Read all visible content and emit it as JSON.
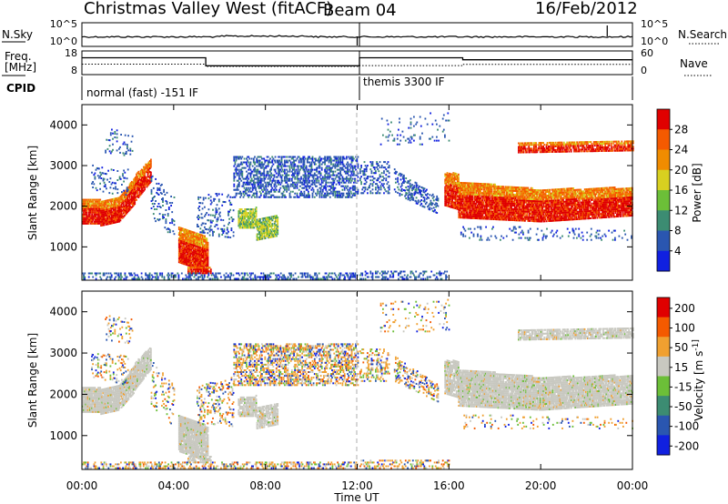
{
  "chart_data": {
    "type": "heatmap",
    "title": {
      "left": "Christmas Valley West (fitACF)",
      "center": "Beam 04",
      "right": "16/Feb/2012"
    },
    "xlabel": "Time UT",
    "x_ticks": [
      "00:00",
      "04:00",
      "08:00",
      "12:00",
      "16:00",
      "20:00",
      "00:00"
    ],
    "header_panels": {
      "sky_noise": {
        "left_label": "N.Sky",
        "left_ticks": [
          "10^5",
          "10^0"
        ],
        "right_label": "N.Search",
        "right_ticks": [
          "10^5",
          "10^0"
        ]
      },
      "frequency": {
        "left_label_1": "Freq.",
        "left_label_2": "[MHz]",
        "left_ticks": [
          "18",
          "8"
        ],
        "right_label": "Nave",
        "right_ticks": [
          "60",
          "0"
        ],
        "freq_solid": [
          [
            0,
            15.5
          ],
          [
            5.4,
            15.5
          ],
          [
            5.4,
            11.5
          ],
          [
            12.1,
            11.5
          ],
          [
            12.1,
            15.5
          ],
          [
            16.6,
            15.5
          ],
          [
            16.6,
            14.5
          ],
          [
            24,
            14.5
          ]
        ],
        "nave_dotted": [
          [
            0,
            12.3
          ],
          [
            5.4,
            12.3
          ],
          [
            5.4,
            11.2
          ],
          [
            12.1,
            11.2
          ],
          [
            12.1,
            11.6
          ],
          [
            16.6,
            11.6
          ],
          [
            16.6,
            12.2
          ],
          [
            24,
            12.2
          ]
        ]
      },
      "cpid": {
        "label": "CPID",
        "segments": [
          "normal (fast) -151 IF",
          "themis 3300 IF"
        ]
      }
    },
    "panels": [
      {
        "ylabel": "Slant Range [km]",
        "y_ticks": [
          "1000",
          "2000",
          "3000",
          "4000"
        ],
        "ylim": [
          180,
          4500
        ],
        "colorbar_label": "Power [dB]",
        "colorbar_ticks": [
          "4",
          "8",
          "12",
          "16",
          "20",
          "24",
          "28"
        ],
        "colors": [
          "#1020e0",
          "#2a56b0",
          "#3c8c72",
          "#6cbf38",
          "#d8d020",
          "#f08c00",
          "#f45a00",
          "#e00000"
        ]
      },
      {
        "ylabel": "Slant Range [km]",
        "y_ticks": [
          "1000",
          "2000",
          "3000",
          "4000"
        ],
        "ylim": [
          180,
          4500
        ],
        "colorbar_label": "Velocity [m s^-1]",
        "colorbar_ticks": [
          "200",
          "100",
          "50",
          "15",
          "-15",
          "-50",
          "-100",
          "-200"
        ],
        "colors": [
          "#1020e0",
          "#2a56b0",
          "#3c8c72",
          "#6cbf38",
          "#c8c8c0",
          "#f0a030",
          "#f45a00",
          "#e00000"
        ]
      }
    ],
    "echo_regions": [
      {
        "t": [
          0.0,
          2.6
        ],
        "r": [
          1500,
          2200
        ],
        "power": "strong",
        "velocity": "~0"
      },
      {
        "t": [
          2.0,
          3.1
        ],
        "r": [
          2200,
          3100
        ],
        "power": "strong",
        "velocity": "~0"
      },
      {
        "t": [
          4.2,
          5.6
        ],
        "r": [
          350,
          1500
        ],
        "power": "strong",
        "velocity": "~0"
      },
      {
        "t": [
          6.3,
          11.9
        ],
        "r": [
          2000,
          3100
        ],
        "power": "weak",
        "velocity": "mixed"
      },
      {
        "t": [
          16.0,
          24.0
        ],
        "r": [
          1600,
          2600
        ],
        "power": "strong",
        "velocity": "~0"
      },
      {
        "t": [
          18.8,
          24.0
        ],
        "r": [
          3300,
          3600
        ],
        "power": "strong",
        "velocity": "~0"
      },
      {
        "t": [
          0.0,
          12.0
        ],
        "r": [
          180,
          350
        ],
        "power": "weak",
        "velocity": "negative"
      }
    ]
  }
}
